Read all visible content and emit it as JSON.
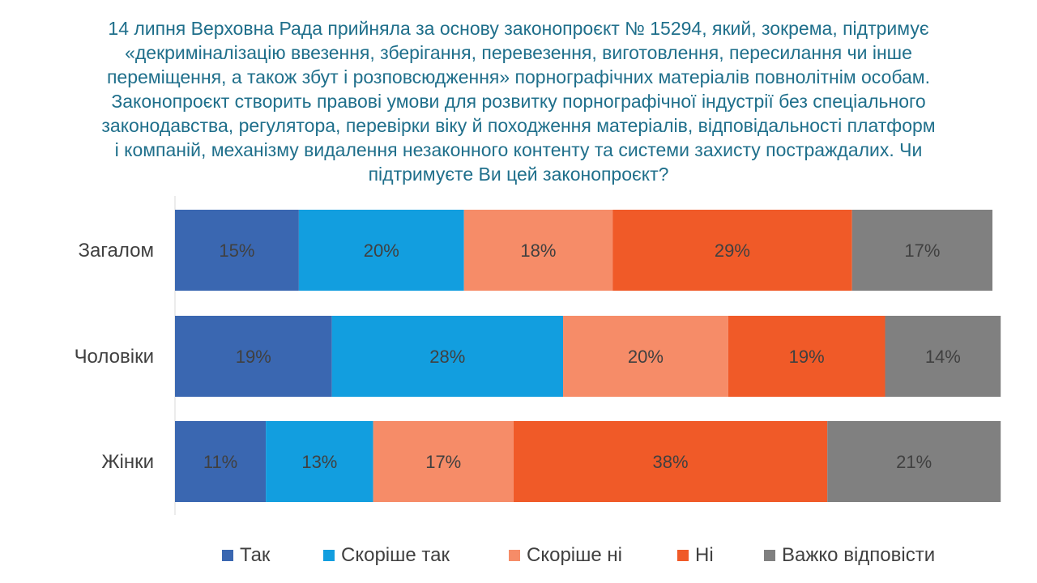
{
  "title_lines": [
    "14 липня Верховна Рада прийняла за основу законопроєкт № 15294, який, зокрема, підтримує",
    "«декриміналізацію ввезення, зберігання, перевезення, виготовлення, пересилання чи інше",
    "переміщення, а також збут і розповсюдження» порнографічних матеріалів повнолітнім особам.",
    "Законопроєкт створить правові умови для розвитку порнографічної індустрії без спеціального",
    "законодавства, регулятора, перевірки віку й походження матеріалів, відповідальності платформ",
    "і компаній, механізму видалення незаконного контенту та системи захисту постраждалих. Чи",
    "підтримуєте Ви цей законопроєкт?"
  ],
  "colors": {
    "title": "#1f6f8b",
    "text": "#404040"
  },
  "chart_data": {
    "type": "bar",
    "orientation": "horizontal",
    "stacked": true,
    "categories": [
      "Загалом",
      "Чоловіки",
      "Жінки"
    ],
    "series": [
      {
        "name": "Так",
        "color": "#3a67b1",
        "values": [
          15,
          19,
          11
        ]
      },
      {
        "name": "Скоріше так",
        "color": "#129edf",
        "values": [
          20,
          28,
          13
        ]
      },
      {
        "name": "Скоріше ні",
        "color": "#f68c68",
        "values": [
          18,
          20,
          17
        ]
      },
      {
        "name": "Ні",
        "color": "#f05a28",
        "values": [
          29,
          19,
          38
        ]
      },
      {
        "name": "Важко відповісти",
        "color": "#808080",
        "values": [
          17,
          14,
          21
        ]
      }
    ],
    "value_suffix": "%",
    "xlim": [
      0,
      99
    ],
    "grid": false,
    "legend_position": "bottom"
  }
}
